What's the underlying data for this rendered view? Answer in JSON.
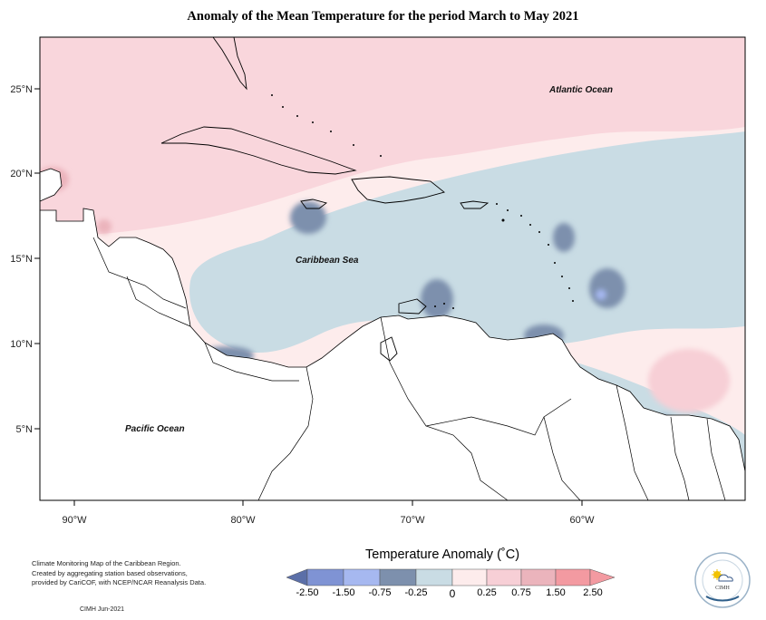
{
  "title": "Anomaly of the Mean Temperature for the period March to May 2021",
  "map": {
    "lat_ticks": [
      "25°N",
      "20°N",
      "15°N",
      "10°N",
      "5°N"
    ],
    "lon_ticks": [
      "90°W",
      "80°W",
      "70°W",
      "60°W"
    ],
    "ocean_labels": {
      "atlantic": "Atlantic Ocean",
      "caribbean": "Caribbean Sea",
      "pacific": "Pacific Ocean"
    }
  },
  "legend": {
    "title": "Temperature Anomaly (˚C)",
    "ticks": [
      "-2.50",
      "-1.50",
      "-0.75",
      "-0.25",
      "0",
      "0.25",
      "0.75",
      "1.50",
      "2.50"
    ],
    "colors": [
      "#5b6fa8",
      "#7f93d4",
      "#a6b8f0",
      "#7d90ad",
      "#c9dce4",
      "#fdecec",
      "#f7cfd6",
      "#ebb4bc",
      "#f39aa1"
    ]
  },
  "note": {
    "lines": [
      "Climate Monitoring Map of the Caribbean Region.",
      "Created by aggregating station based observations,",
      "provided by CariCOF, with NCEP/NCAR Reanalysis Data."
    ],
    "credit": "CIMH Jun-2021"
  },
  "logo": {
    "text": "CIMH"
  }
}
